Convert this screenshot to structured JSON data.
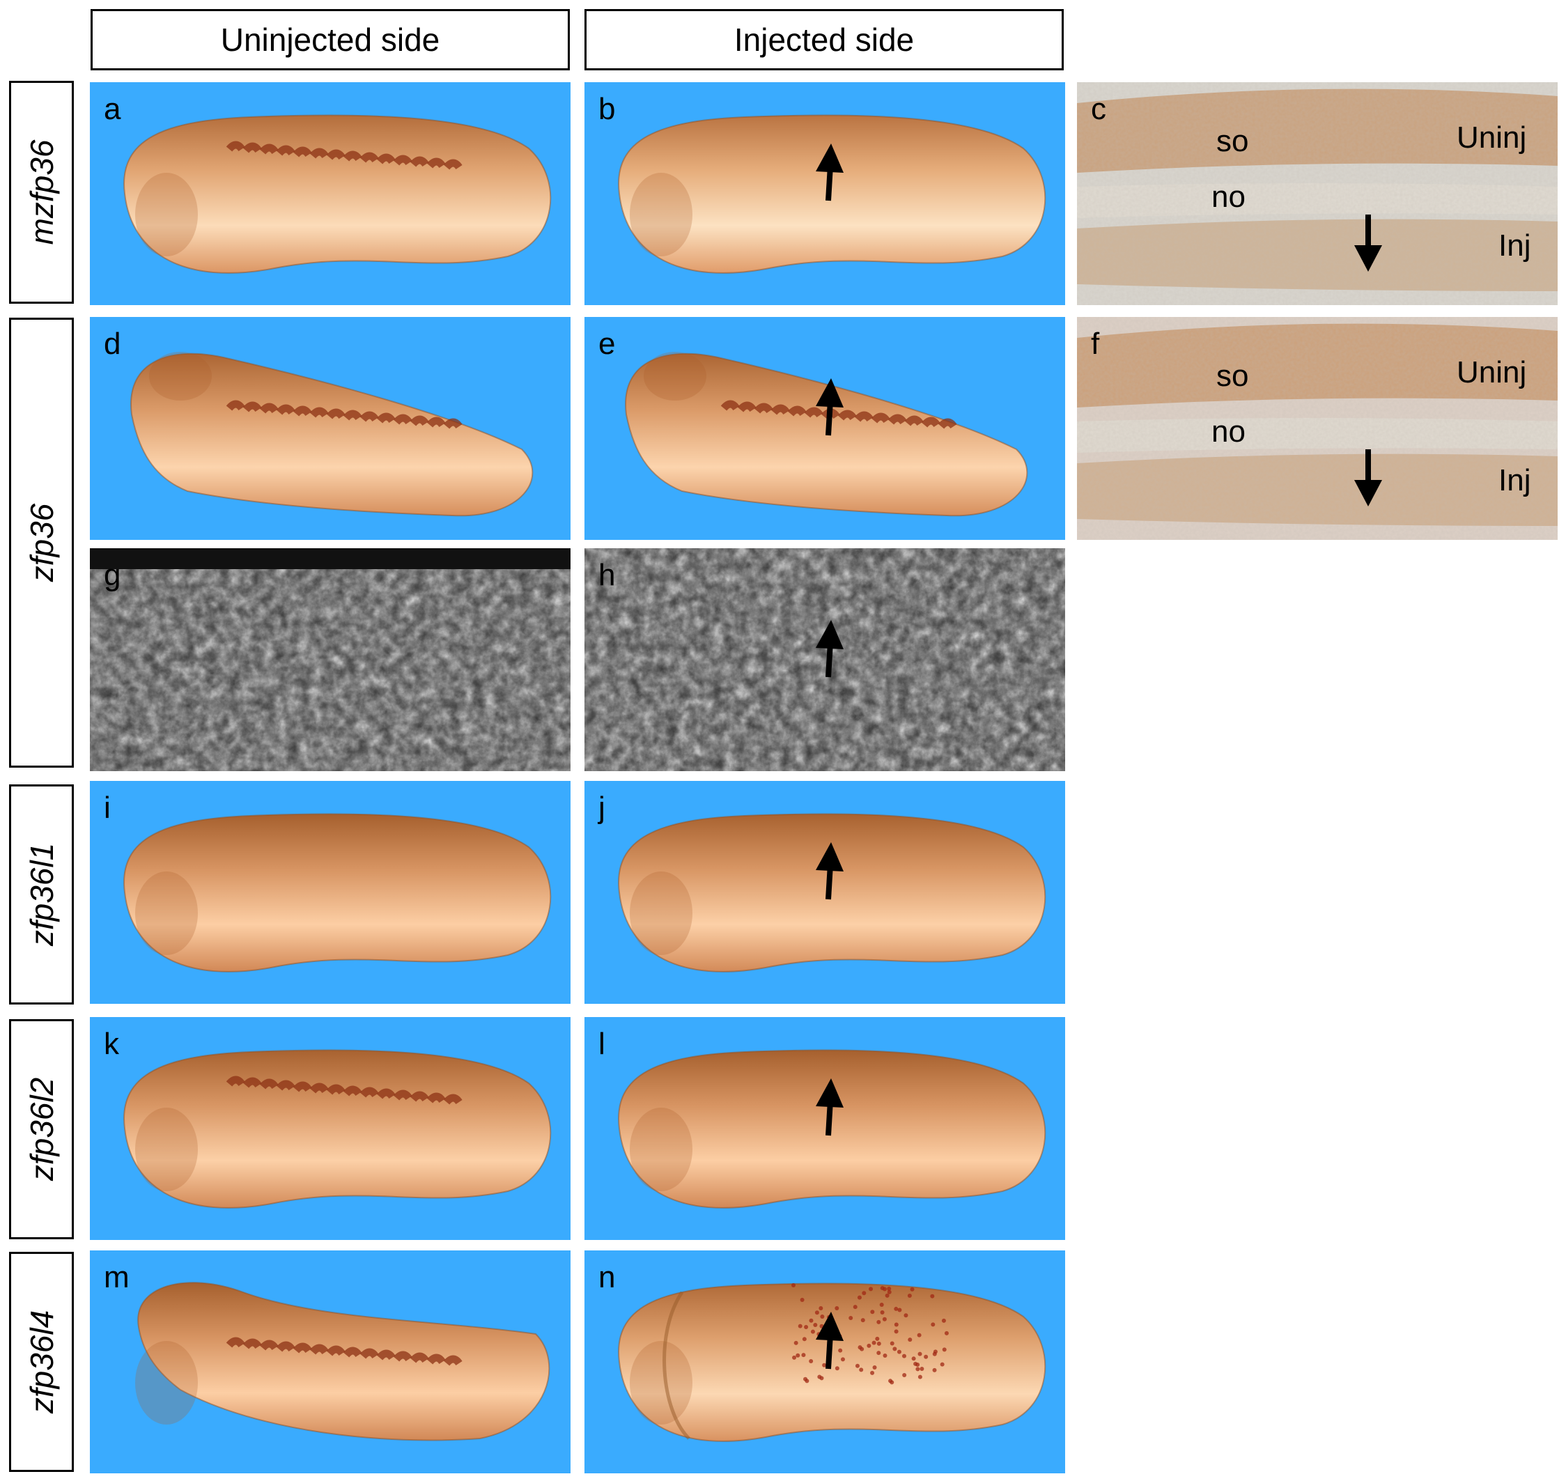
{
  "headers": {
    "uninjected": "Uninjected side",
    "injected": "Injected side"
  },
  "row_labels": [
    "mzfp36",
    "zfp36",
    "zfp36l1",
    "zfp36l2",
    "zfp36l4"
  ],
  "panels": {
    "a": "a",
    "b": "b",
    "c": "c",
    "d": "d",
    "e": "e",
    "f": "f",
    "g": "g",
    "h": "h",
    "i": "i",
    "j": "j",
    "k": "k",
    "l": "l",
    "m": "m",
    "n": "n"
  },
  "histology_labels": {
    "somite": "so",
    "notochord": "no",
    "uninjected": "Uninj",
    "injected": "Inj"
  },
  "colors": {
    "background_blue": "#3aabfe",
    "embryo_dark": "#b8632a",
    "embryo_light": "#fbe6c0"
  }
}
